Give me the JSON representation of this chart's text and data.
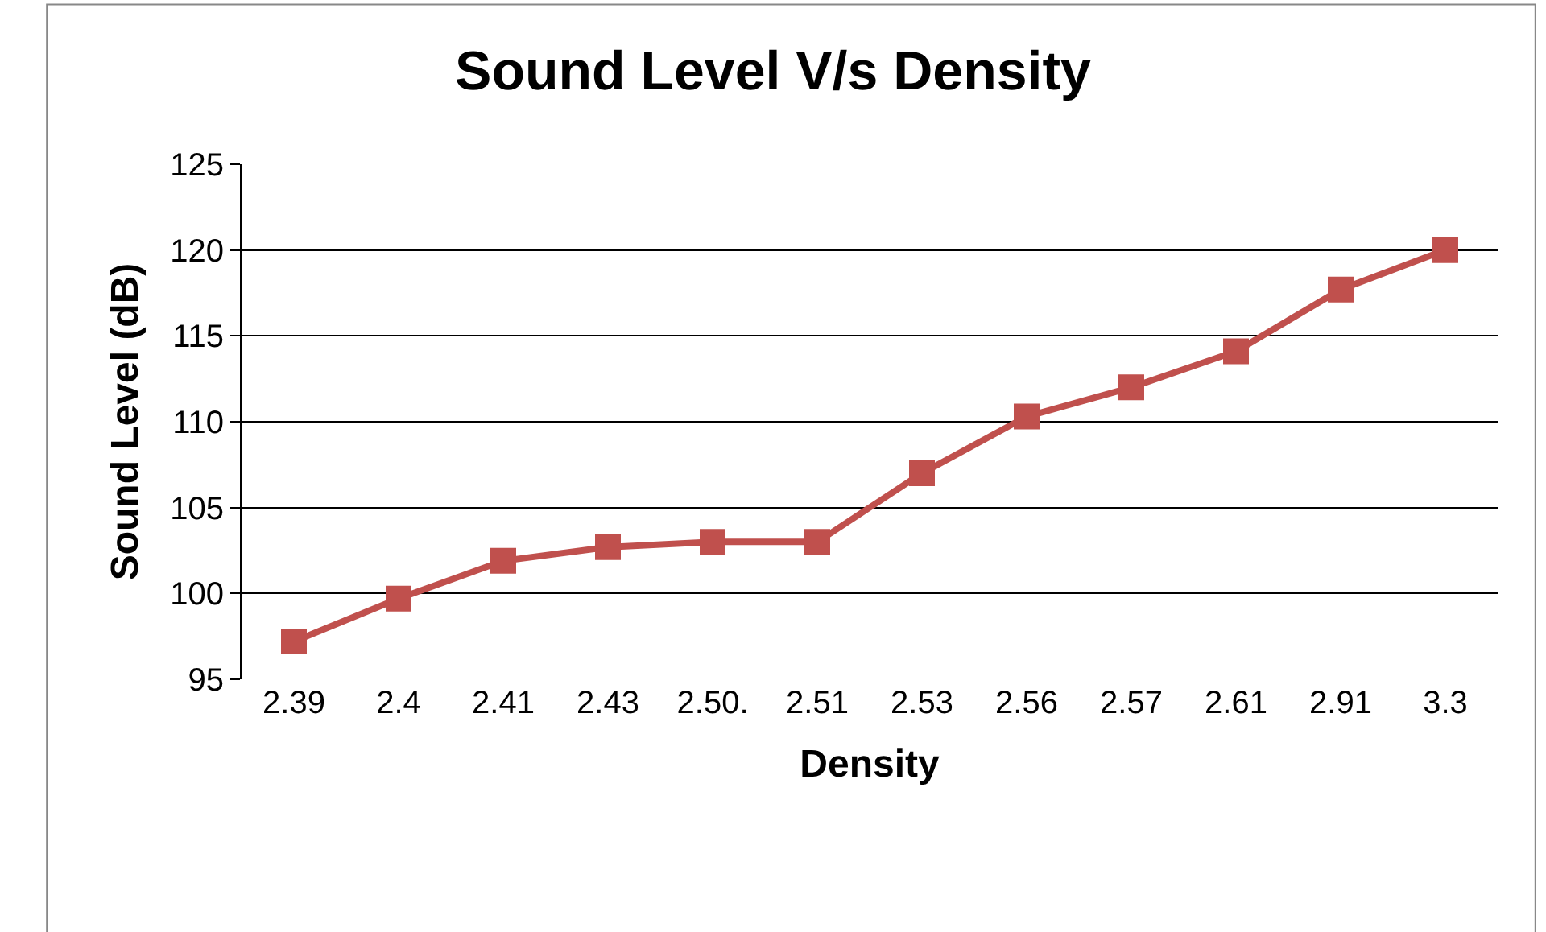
{
  "chart_data": {
    "type": "line",
    "title": "Sound Level V/s Density",
    "xlabel": "Density",
    "ylabel": "Sound Level (dB)",
    "categories": [
      "2.39",
      "2.4",
      "2.41",
      "2.43",
      "2.50.",
      "2.51",
      "2.53",
      "2.56",
      "2.57",
      "2.61",
      "2.91",
      "3.3"
    ],
    "series": [
      {
        "color": "#c0504d",
        "values": [
          97.2,
          99.7,
          101.9,
          102.7,
          103.0,
          103.0,
          107.0,
          110.3,
          112.0,
          114.1,
          117.7,
          120.0
        ]
      }
    ],
    "ylim": [
      95,
      125
    ],
    "yticks": [
      95,
      100,
      105,
      110,
      115,
      120,
      125
    ],
    "grid": "y",
    "legend": false,
    "marker": "square",
    "line_style": "solid"
  }
}
